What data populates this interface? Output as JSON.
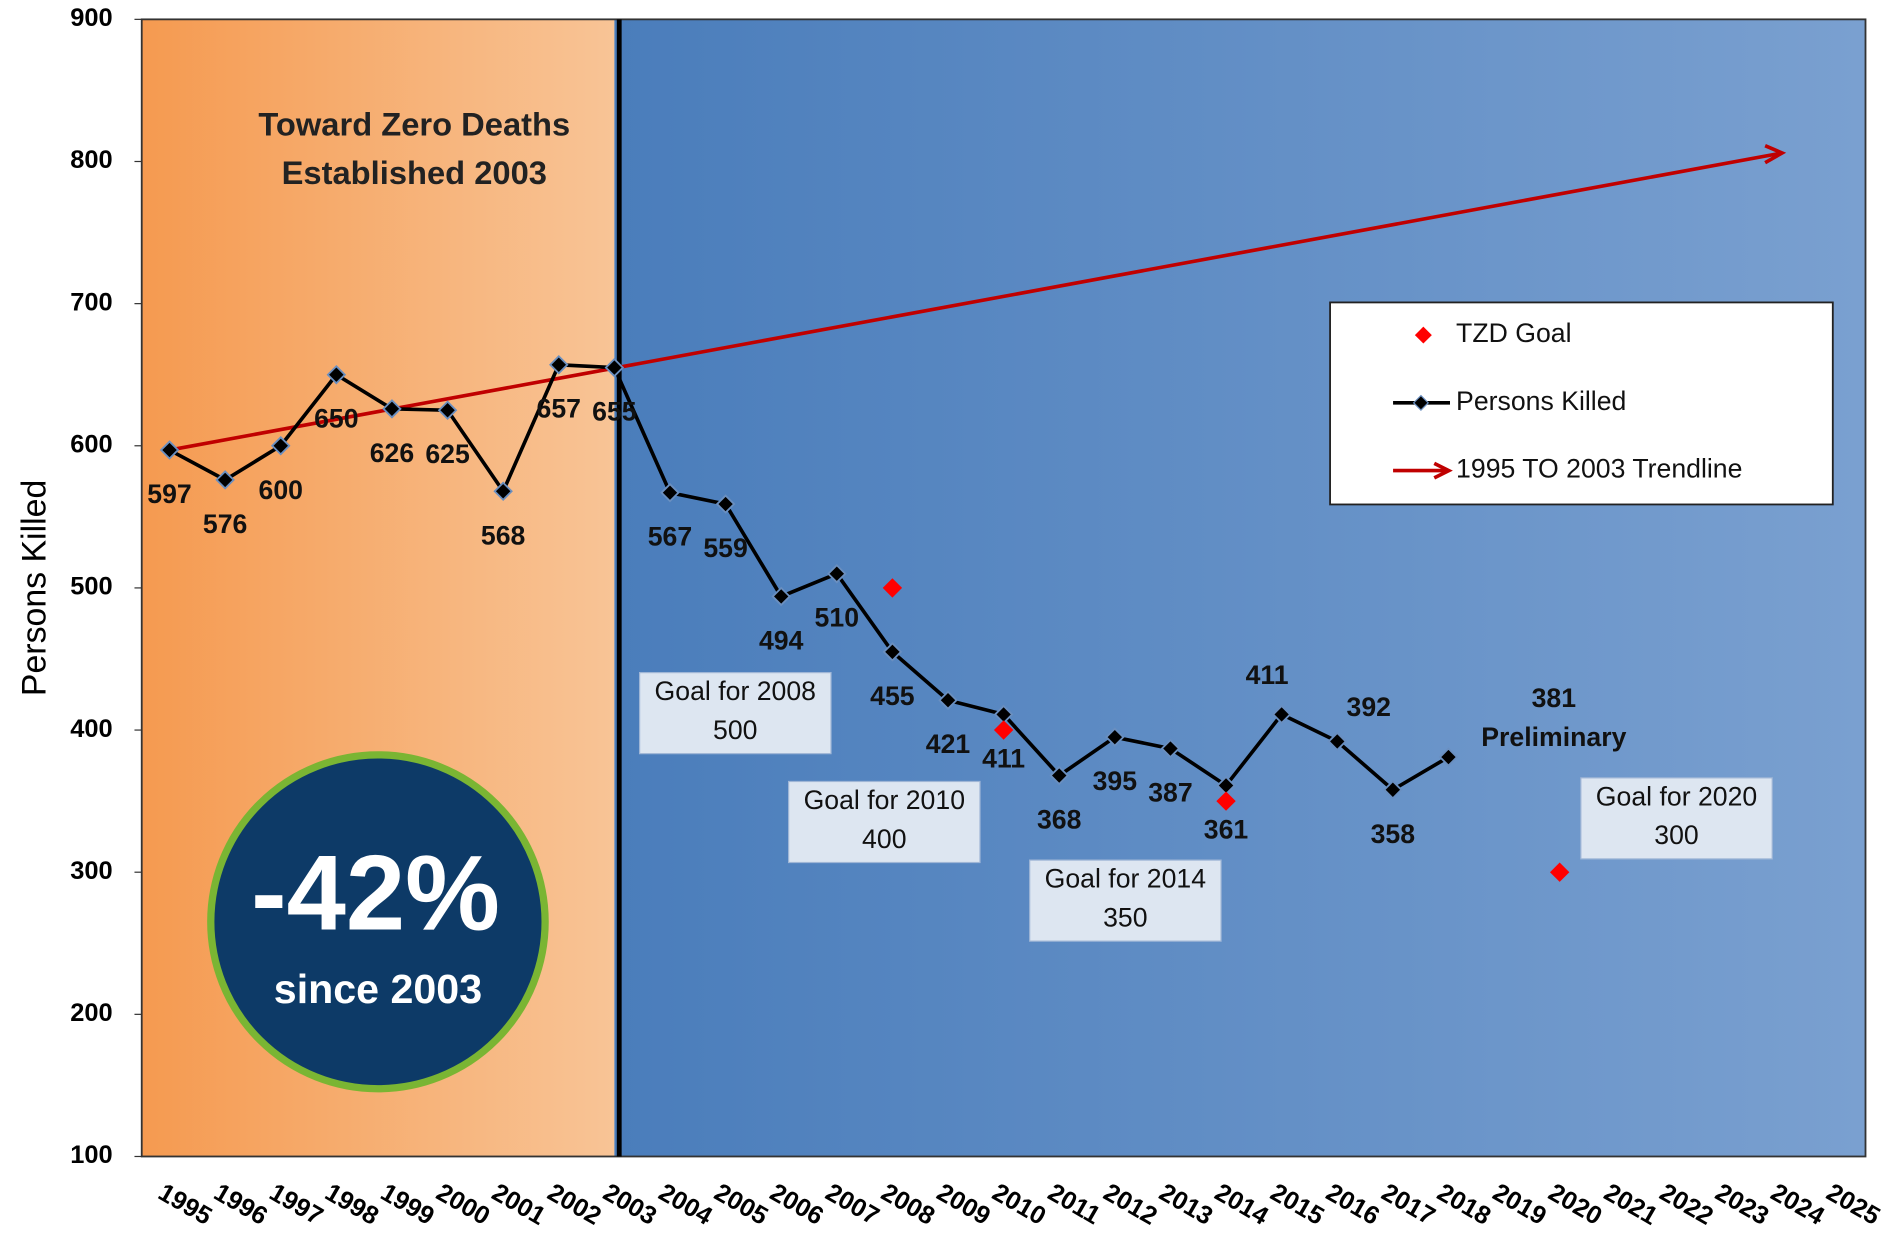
{
  "chart_data": {
    "type": "line",
    "y_label": "Persons Killed",
    "categories": [
      "1995",
      "1996",
      "1997",
      "1998",
      "1999",
      "2000",
      "2001",
      "2002",
      "2003",
      "2004",
      "2005",
      "2006",
      "2007",
      "2008",
      "2009",
      "2010",
      "2011",
      "2012",
      "2013",
      "2014",
      "2015",
      "2016",
      "2017",
      "2018",
      "2019",
      "2020",
      "2021",
      "2022",
      "2023",
      "2024",
      "2025"
    ],
    "series": [
      {
        "name": "Persons Killed",
        "color": "#000000",
        "values": [
          597,
          576,
          600,
          650,
          626,
          625,
          568,
          657,
          655,
          567,
          559,
          494,
          510,
          455,
          421,
          411,
          368,
          395,
          387,
          361,
          411,
          392,
          358,
          381,
          null,
          null,
          null,
          null,
          null,
          null,
          null
        ]
      },
      {
        "name": "TZD Goal",
        "color": "#ff0000",
        "values": [
          null,
          null,
          null,
          null,
          null,
          null,
          null,
          null,
          null,
          null,
          null,
          null,
          null,
          500,
          null,
          400,
          null,
          null,
          null,
          350,
          null,
          null,
          null,
          null,
          null,
          300,
          null,
          null,
          null,
          null,
          null
        ]
      }
    ],
    "trendline": {
      "name": "1995 TO 2003 Trendline",
      "color": "#c00000",
      "points": [
        {
          "category": "1995",
          "value": 597
        },
        {
          "category": "2024",
          "value": 806
        }
      ]
    },
    "ylim": [
      100,
      900
    ],
    "yticks": [
      100,
      200,
      300,
      400,
      500,
      600,
      700,
      800,
      900
    ],
    "grid": false,
    "legend": "upper right",
    "annotations": {
      "tzd_title": [
        "Toward Zero Deaths",
        "Established 2003"
      ],
      "change": "-42%",
      "change_since": "since 2003",
      "preliminary": "Preliminary",
      "goal_titles": [
        "Goal for 2008",
        "Goal for 2010",
        "Goal for 2014",
        "Goal for 2020"
      ]
    }
  }
}
